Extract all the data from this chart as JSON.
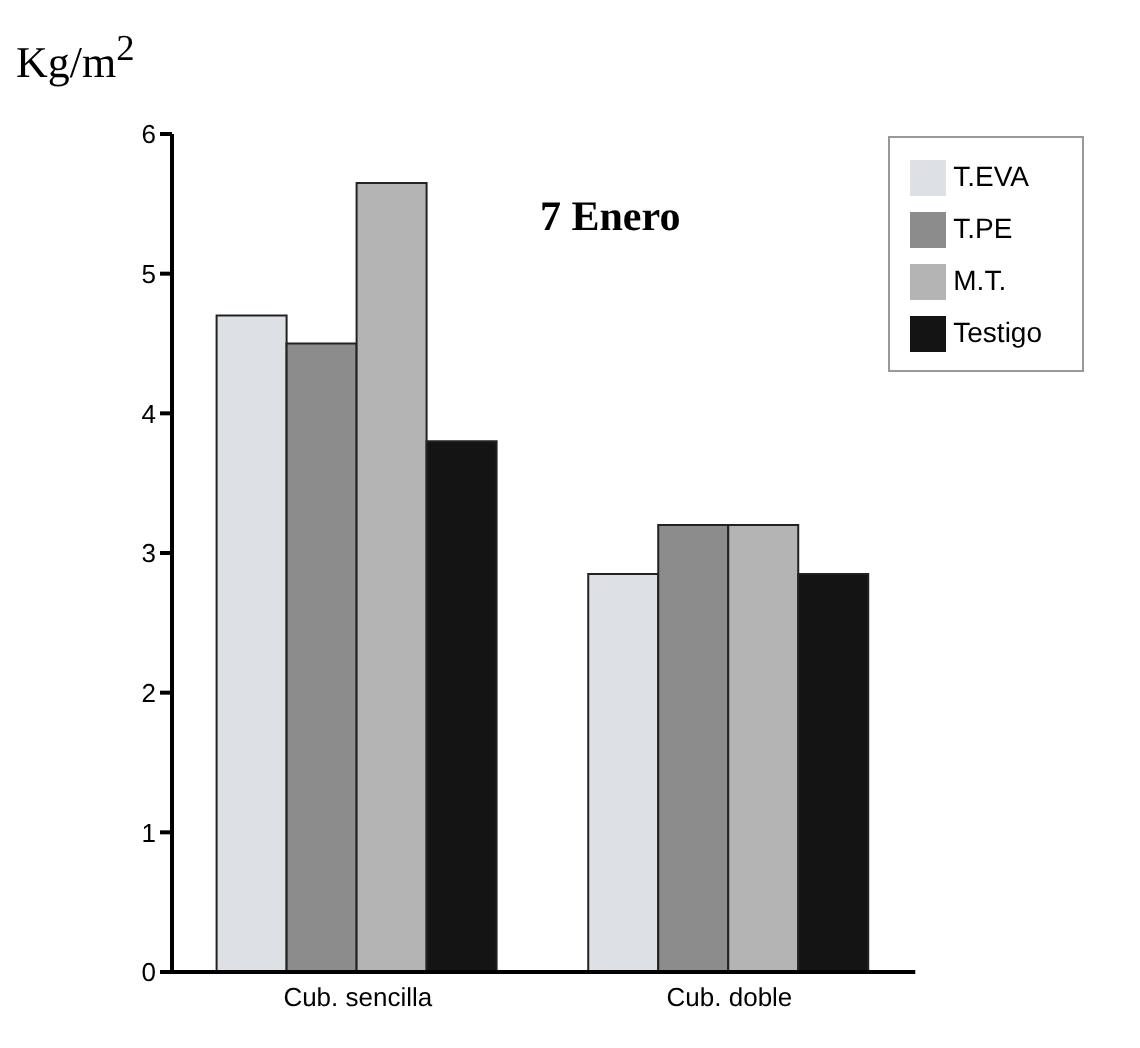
{
  "chart_data": {
    "type": "bar",
    "title": "7 Enero",
    "ylabel": "Kg/m$^{2}$",
    "categories": [
      "Cub. sencilla",
      "Cub. doble"
    ],
    "series": [
      {
        "name": "T.EVA",
        "color": "#dde1e6",
        "values": [
          4.7,
          2.85
        ]
      },
      {
        "name": "T.PE",
        "color": "#8c8c8c",
        "values": [
          4.5,
          3.2
        ]
      },
      {
        "name": "M.T.",
        "color": "#b4b4b4",
        "values": [
          5.65,
          3.2
        ]
      },
      {
        "name": "Testigo",
        "color": "#141414",
        "values": [
          3.8,
          2.85
        ]
      }
    ],
    "ylim": [
      0,
      6
    ],
    "yticks": [
      0,
      1,
      2,
      3,
      4,
      5,
      6
    ],
    "grid": false,
    "legend": "top right"
  }
}
